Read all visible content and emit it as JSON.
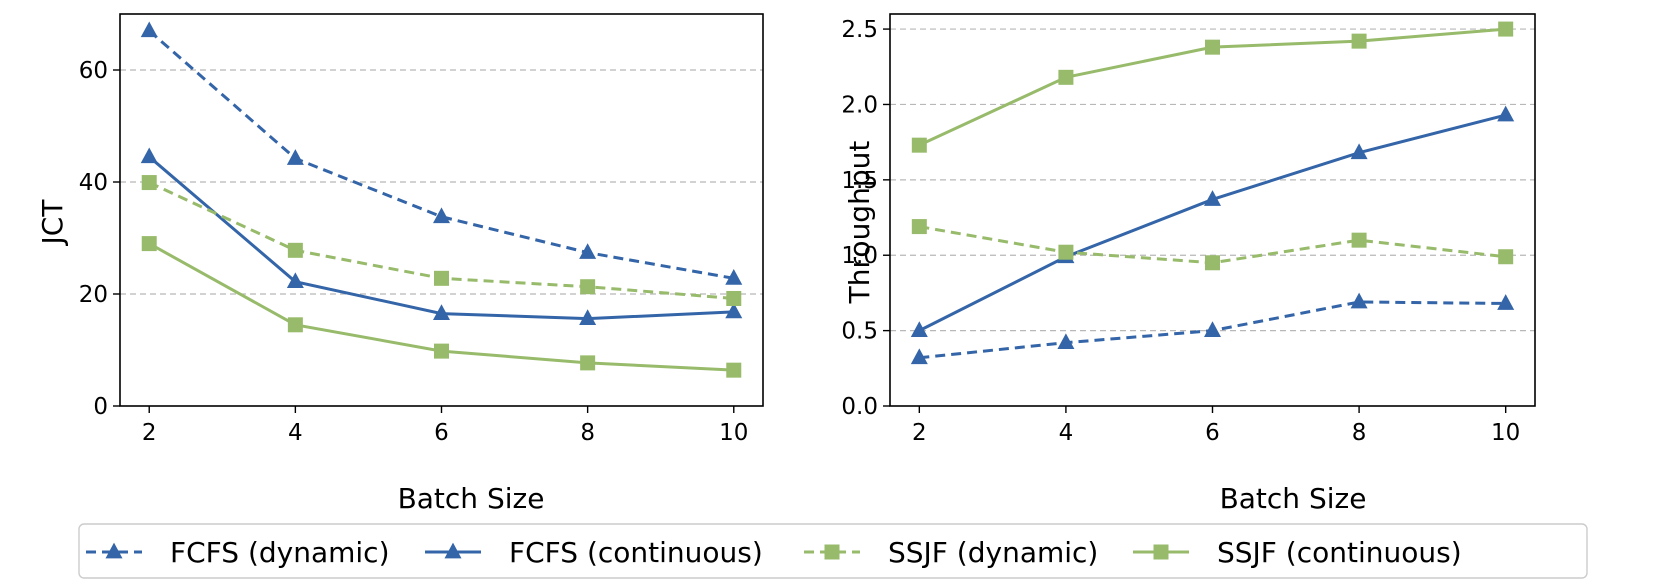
{
  "chart_data": [
    {
      "type": "line",
      "xlabel": "Batch Size",
      "ylabel": "JCT",
      "x": [
        2,
        4,
        6,
        8,
        10
      ],
      "xticks": [
        "2",
        "4",
        "6",
        "8",
        "10"
      ],
      "xlim": [
        1.6,
        10.4
      ],
      "ylim": [
        0,
        70
      ],
      "yticks": [
        "0",
        "20",
        "40",
        "60"
      ],
      "ytick_values": [
        0,
        20,
        40,
        60
      ],
      "grid": "y-dashed",
      "series": [
        {
          "name": "FCFS (dynamic)",
          "values": [
            67.0,
            44.2,
            33.8,
            27.4,
            22.8
          ]
        },
        {
          "name": "FCFS (continuous)",
          "values": [
            44.5,
            22.2,
            16.5,
            15.6,
            16.8
          ]
        },
        {
          "name": "SSJF (dynamic)",
          "values": [
            39.9,
            27.8,
            22.8,
            21.3,
            19.2
          ]
        },
        {
          "name": "SSJF (continuous)",
          "values": [
            29.0,
            14.5,
            9.8,
            7.7,
            6.4
          ]
        }
      ]
    },
    {
      "type": "line",
      "xlabel": "Batch Size",
      "ylabel": "Throughput",
      "x": [
        2,
        4,
        6,
        8,
        10
      ],
      "xticks": [
        "2",
        "4",
        "6",
        "8",
        "10"
      ],
      "xlim": [
        1.6,
        10.4
      ],
      "ylim": [
        0,
        2.6
      ],
      "yticks": [
        "0.0",
        "0.5",
        "1.0",
        "1.5",
        "2.0",
        "2.5"
      ],
      "ytick_values": [
        0,
        0.5,
        1.0,
        1.5,
        2.0,
        2.5
      ],
      "grid": "y-dashed",
      "series": [
        {
          "name": "FCFS (dynamic)",
          "values": [
            0.32,
            0.42,
            0.5,
            0.69,
            0.68
          ]
        },
        {
          "name": "FCFS (continuous)",
          "values": [
            0.5,
            0.99,
            1.37,
            1.68,
            1.93
          ]
        },
        {
          "name": "SSJF (dynamic)",
          "values": [
            1.19,
            1.02,
            0.95,
            1.1,
            0.99
          ]
        },
        {
          "name": "SSJF (continuous)",
          "values": [
            1.73,
            2.18,
            2.38,
            2.42,
            2.5
          ]
        }
      ]
    }
  ],
  "legend": {
    "placement": "bottom-center",
    "entries": [
      "FCFS (dynamic)",
      "FCFS (continuous)",
      "SSJF (dynamic)",
      "SSJF (continuous)"
    ]
  },
  "styles": {
    "FCFS (dynamic)": {
      "color": "#3465a8",
      "dash": true,
      "marker": "triangle"
    },
    "FCFS (continuous)": {
      "color": "#3465a8",
      "dash": false,
      "marker": "triangle"
    },
    "SSJF (dynamic)": {
      "color": "#97bb6a",
      "dash": true,
      "marker": "square"
    },
    "SSJF (continuous)": {
      "color": "#97bb6a",
      "dash": false,
      "marker": "square"
    }
  }
}
